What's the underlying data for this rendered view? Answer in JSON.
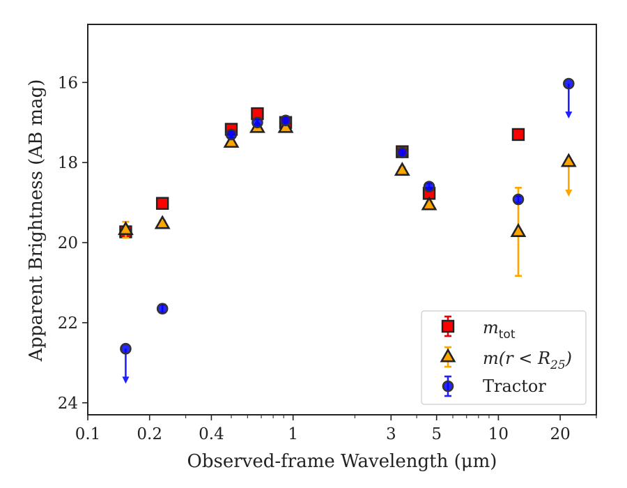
{
  "chart_data": {
    "type": "scatter",
    "xlabel": "Observed-frame Wavelength (μm)",
    "ylabel": "Apparent Brightness (AB mag)",
    "xscale": "log",
    "xlim": [
      0.1,
      30
    ],
    "ylim": [
      24.3,
      14.55
    ],
    "y_inverted": true,
    "xticks": [
      {
        "value": 0.1,
        "label": "0.1"
      },
      {
        "value": 0.2,
        "label": "0.2"
      },
      {
        "value": 0.4,
        "label": "0.4"
      },
      {
        "value": 1,
        "label": "1"
      },
      {
        "value": 3,
        "label": "3"
      },
      {
        "value": 5,
        "label": "5"
      },
      {
        "value": 10,
        "label": "10"
      },
      {
        "value": 20,
        "label": "20"
      }
    ],
    "yticks": [
      {
        "value": 16,
        "label": "16"
      },
      {
        "value": 18,
        "label": "18"
      },
      {
        "value": 20,
        "label": "20"
      },
      {
        "value": 22,
        "label": "22"
      },
      {
        "value": 24,
        "label": "24"
      }
    ],
    "grid": false,
    "legend_position": "lower-right",
    "legend": [
      {
        "label_main": "m",
        "label_sub": "tot",
        "suffix": ""
      },
      {
        "label_main": "m(r < R",
        "label_sub": "25",
        "suffix": ")"
      },
      {
        "label_main": "Tractor",
        "label_sub": "",
        "suffix": ""
      }
    ],
    "series": [
      {
        "key": "mtot",
        "marker": "square",
        "color": "#ff0000",
        "edge": "#222222",
        "errcolor": "#ee0000",
        "points": [
          {
            "x": 0.153,
            "y": 19.73,
            "err": 0.1
          },
          {
            "x": 0.231,
            "y": 19.02,
            "err": 0.08
          },
          {
            "x": 0.5,
            "y": 17.17,
            "err": 0.08
          },
          {
            "x": 0.67,
            "y": 16.78,
            "err": 0.1
          },
          {
            "x": 0.92,
            "y": 17.0,
            "err": 0.08
          },
          {
            "x": 3.4,
            "y": 17.73,
            "err": 0.1
          },
          {
            "x": 4.6,
            "y": 18.77,
            "err": 0.1
          },
          {
            "x": 12.5,
            "y": 17.3,
            "err": 0.08
          }
        ]
      },
      {
        "key": "mr25",
        "marker": "triangle",
        "color": "#ffa500",
        "edge": "#222222",
        "errcolor": "#ffa500",
        "points": [
          {
            "x": 0.153,
            "y": 19.68,
            "err": 0.2
          },
          {
            "x": 0.231,
            "y": 19.53,
            "err": 0.08
          },
          {
            "x": 0.5,
            "y": 17.5,
            "err": 0.08
          },
          {
            "x": 0.67,
            "y": 17.13,
            "err": 0.08
          },
          {
            "x": 0.92,
            "y": 17.13,
            "err": 0.08
          },
          {
            "x": 3.4,
            "y": 18.2,
            "err": 0.08
          },
          {
            "x": 4.6,
            "y": 19.06,
            "err": 0.08
          },
          {
            "x": 12.5,
            "y": 19.73,
            "err": 1.1
          },
          {
            "x": 22,
            "y": 17.98,
            "err": 0,
            "upper_limit": true
          }
        ]
      },
      {
        "key": "tractor",
        "marker": "circle",
        "color": "#0000ff",
        "edge": "#333333",
        "errcolor": "#1f1fff",
        "points": [
          {
            "x": 0.153,
            "y": 22.65,
            "err": 0,
            "upper_limit": true
          },
          {
            "x": 0.231,
            "y": 21.65,
            "err": 0.1
          },
          {
            "x": 0.5,
            "y": 17.3,
            "err": 0.08
          },
          {
            "x": 0.67,
            "y": 17.0,
            "err": 0.08
          },
          {
            "x": 0.92,
            "y": 16.95,
            "err": 0.08
          },
          {
            "x": 3.4,
            "y": 17.75,
            "err": 0.08
          },
          {
            "x": 4.6,
            "y": 18.6,
            "err": 0.08
          },
          {
            "x": 12.5,
            "y": 18.92,
            "err": 0.08
          },
          {
            "x": 22,
            "y": 16.03,
            "err": 0,
            "upper_limit": true
          }
        ]
      }
    ]
  }
}
